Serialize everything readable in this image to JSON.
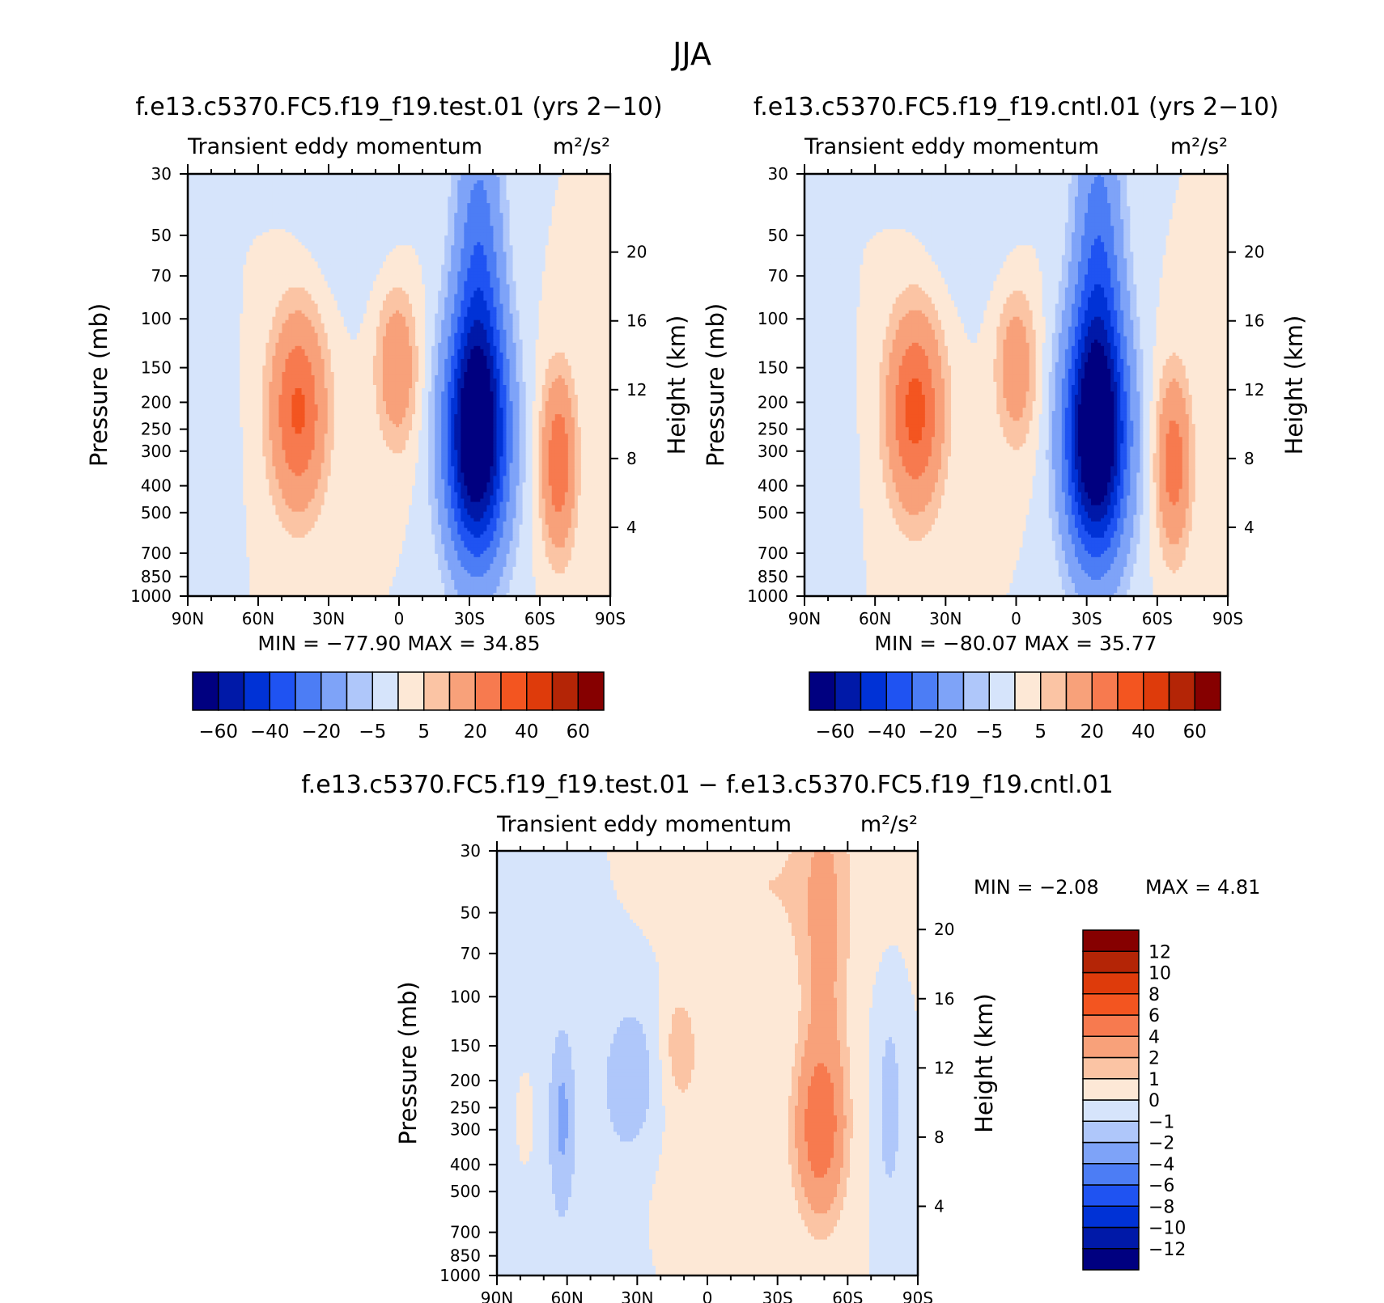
{
  "figure": {
    "title": "JJA"
  },
  "chart_data": [
    {
      "type": "heatmap",
      "title": "f.e13.c5370.FC5.f19_f19.test.01 (yrs 2−10)",
      "variable_label": "Transient eddy momentum",
      "units_label": "m²/s²",
      "xlabel": "",
      "ylabel": "Pressure (mb)",
      "ylabel_right": "Height (km)",
      "x_ticks": [
        "90N",
        "60N",
        "30N",
        "0",
        "30S",
        "60S",
        "90S"
      ],
      "x_range": [
        90,
        -90
      ],
      "y_ticks": [
        30,
        50,
        70,
        100,
        150,
        200,
        250,
        300,
        400,
        500,
        700,
        850,
        1000
      ],
      "y_range": [
        30,
        1000
      ],
      "y_scale": "log",
      "right_ticks": [
        4,
        8,
        12,
        16,
        20
      ],
      "stats": "MIN = −77.90   MAX =   34.85",
      "colorbar": {
        "orientation": "horizontal",
        "levels": [
          -70,
          -60,
          -50,
          -40,
          -30,
          -20,
          -10,
          -5,
          0,
          5,
          10,
          20,
          30,
          40,
          50,
          60,
          70
        ],
        "tick_labels": [
          "−60",
          "−40",
          "−20",
          "−5",
          "5",
          "20",
          "40",
          "60"
        ],
        "colors": [
          "#000080",
          "#0019a8",
          "#0032d6",
          "#1f53f2",
          "#4c7df5",
          "#7ea3f8",
          "#afc7fa",
          "#d6e4fb",
          "#fde8d6",
          "#fbc4a4",
          "#f8a17a",
          "#f77a4f",
          "#f35520",
          "#de3b0b",
          "#b42506",
          "#860000"
        ]
      },
      "features": [
        {
          "lat": 43,
          "p": 215,
          "value": 32,
          "sx": 8,
          "sy": 0.55
        },
        {
          "lat": 1,
          "p": 150,
          "value": 18,
          "sx": 6,
          "sy": 0.45
        },
        {
          "lat": -33,
          "p": 270,
          "value": -78,
          "sx": 9,
          "sy": 0.7
        },
        {
          "lat": -34,
          "p": 60,
          "value": -25,
          "sx": 7,
          "sy": 0.9
        },
        {
          "lat": -68,
          "p": 330,
          "value": 28,
          "sx": 5,
          "sy": 0.5
        },
        {
          "lat": 78,
          "p": 400,
          "value": -4,
          "sx": 5,
          "sy": 0.9
        },
        {
          "lat": 20,
          "p": 40,
          "value": -4,
          "sx": 15,
          "sy": 0.5
        }
      ]
    },
    {
      "type": "heatmap",
      "title": "f.e13.c5370.FC5.f19_f19.cntl.01 (yrs 2−10)",
      "variable_label": "Transient eddy momentum",
      "units_label": "m²/s²",
      "xlabel": "",
      "ylabel": "Pressure (mb)",
      "ylabel_right": "Height (km)",
      "x_ticks": [
        "90N",
        "60N",
        "30N",
        "0",
        "30S",
        "60S",
        "90S"
      ],
      "x_range": [
        90,
        -90
      ],
      "y_ticks": [
        30,
        50,
        70,
        100,
        150,
        200,
        250,
        300,
        400,
        500,
        700,
        850,
        1000
      ],
      "y_range": [
        30,
        1000
      ],
      "y_scale": "log",
      "right_ticks": [
        4,
        8,
        12,
        16,
        20
      ],
      "stats": "MIN = −80.07   MAX =   35.77",
      "colorbar": {
        "orientation": "horizontal",
        "levels": [
          -70,
          -60,
          -50,
          -40,
          -30,
          -20,
          -10,
          -5,
          0,
          5,
          10,
          20,
          30,
          40,
          50,
          60,
          70
        ],
        "tick_labels": [
          "−60",
          "−40",
          "−20",
          "−5",
          "5",
          "20",
          "40",
          "60"
        ],
        "colors": [
          "#000080",
          "#0019a8",
          "#0032d6",
          "#1f53f2",
          "#4c7df5",
          "#7ea3f8",
          "#afc7fa",
          "#d6e4fb",
          "#fde8d6",
          "#fbc4a4",
          "#f8a17a",
          "#f77a4f",
          "#f35520",
          "#de3b0b",
          "#b42506",
          "#860000"
        ]
      },
      "features": [
        {
          "lat": 43,
          "p": 215,
          "value": 34,
          "sx": 8,
          "sy": 0.55
        },
        {
          "lat": 0,
          "p": 150,
          "value": 16,
          "sx": 6,
          "sy": 0.45
        },
        {
          "lat": -34,
          "p": 270,
          "value": -80,
          "sx": 9,
          "sy": 0.7
        },
        {
          "lat": -35,
          "p": 60,
          "value": -26,
          "sx": 7,
          "sy": 0.9
        },
        {
          "lat": -67,
          "p": 330,
          "value": 26,
          "sx": 5,
          "sy": 0.5
        },
        {
          "lat": 78,
          "p": 400,
          "value": -4,
          "sx": 5,
          "sy": 0.9
        },
        {
          "lat": 20,
          "p": 40,
          "value": -4,
          "sx": 15,
          "sy": 0.5
        }
      ]
    },
    {
      "type": "heatmap",
      "title": "f.e13.c5370.FC5.f19_f19.test.01 − f.e13.c5370.FC5.f19_f19.cntl.01",
      "variable_label": "Transient eddy momentum",
      "units_label": "m²/s²",
      "xlabel": "",
      "ylabel": "Pressure (mb)",
      "ylabel_right": "Height (km)",
      "x_ticks": [
        "90N",
        "60N",
        "30N",
        "0",
        "30S",
        "60S",
        "90S"
      ],
      "x_range": [
        90,
        -90
      ],
      "y_ticks": [
        30,
        50,
        70,
        100,
        150,
        200,
        250,
        300,
        400,
        500,
        700,
        850,
        1000
      ],
      "y_range": [
        30,
        1000
      ],
      "y_scale": "log",
      "right_ticks": [
        4,
        8,
        12,
        16,
        20
      ],
      "stats_min": "MIN =    −2.08",
      "stats_max": "MAX =     4.81",
      "colorbar": {
        "orientation": "vertical",
        "levels": [
          -14,
          -12,
          -10,
          -8,
          -6,
          -4,
          -2,
          -1,
          0,
          1,
          2,
          4,
          6,
          8,
          10,
          12,
          14
        ],
        "tick_labels": [
          "−12",
          "−10",
          "−8",
          "−6",
          "−4",
          "−2",
          "−1",
          "0",
          "1",
          "2",
          "4",
          "6",
          "8",
          "10",
          "12"
        ],
        "colors": [
          "#000080",
          "#0019a8",
          "#0032d6",
          "#1f53f2",
          "#4c7df5",
          "#7ea3f8",
          "#afc7fa",
          "#d6e4fb",
          "#fde8d6",
          "#fbc4a4",
          "#f8a17a",
          "#f77a4f",
          "#f35520",
          "#de3b0b",
          "#b42506",
          "#860000"
        ]
      },
      "features": [
        {
          "lat": 80,
          "p": 500,
          "value": -0.6,
          "sx": 40,
          "sy": 1.5
        },
        {
          "lat": -48,
          "p": 300,
          "value": 4.8,
          "sx": 7,
          "sy": 0.45
        },
        {
          "lat": -50,
          "p": 80,
          "value": 2.2,
          "sx": 7,
          "sy": 1.2
        },
        {
          "lat": -25,
          "p": 40,
          "value": 1.0,
          "sx": 30,
          "sy": 0.5
        },
        {
          "lat": 12,
          "p": 150,
          "value": 1.6,
          "sx": 6,
          "sy": 0.35
        },
        {
          "lat": 32,
          "p": 200,
          "value": -1.5,
          "sx": 9,
          "sy": 0.5
        },
        {
          "lat": 62,
          "p": 270,
          "value": -1.8,
          "sx": 3.5,
          "sy": 0.5
        },
        {
          "lat": -78,
          "p": 250,
          "value": -1.6,
          "sx": 4,
          "sy": 0.6
        },
        {
          "lat": 78,
          "p": 280,
          "value": 1.2,
          "sx": 3,
          "sy": 0.3
        },
        {
          "lat": 0,
          "p": 450,
          "value": 0.8,
          "sx": 20,
          "sy": 0.6
        }
      ]
    }
  ]
}
